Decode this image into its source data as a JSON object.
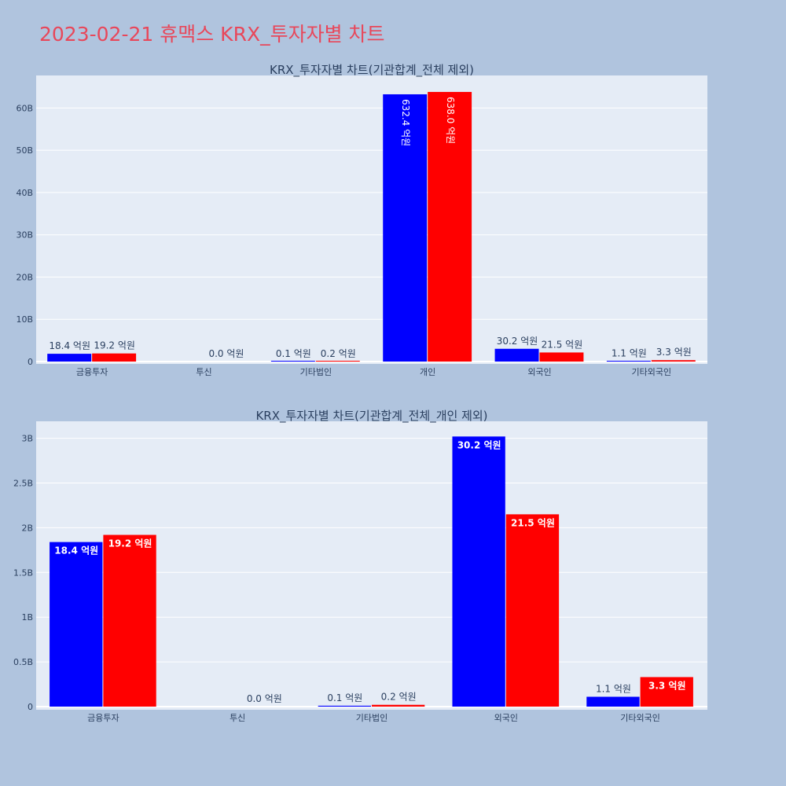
{
  "title": "2023-02-21 휴맥스 KRX_투자자별 차트",
  "colors": {
    "page_bg": "#b0c4de",
    "plot_bg": "#e5ecf6",
    "title": "#e8475a",
    "series1": "#0000ff",
    "series2": "#ff0000"
  },
  "chart_data": [
    {
      "type": "bar",
      "title": "KRX_투자자별 차트(기관합계_전체 제외)",
      "categories": [
        "금융투자",
        "투신",
        "기타법인",
        "개인",
        "외국인",
        "기타외국인"
      ],
      "series": [
        {
          "values": [
            1.84,
            0.0,
            0.01,
            63.24,
            3.02,
            0.11
          ],
          "labels": [
            "18.4 억원",
            "",
            "0.1 억원",
            "632.4 억원",
            "30.2 억원",
            "1.1 억원"
          ]
        },
        {
          "values": [
            1.92,
            0.0,
            0.02,
            63.8,
            2.15,
            0.33
          ],
          "labels": [
            "19.2 억원",
            "0.0 억원",
            "0.2 억원",
            "638.0 억원",
            "21.5 억원",
            "3.3 억원"
          ]
        }
      ],
      "yticks": [
        "0",
        "10B",
        "20B",
        "30B",
        "40B",
        "50B",
        "60B"
      ],
      "ylim": [
        0,
        67.7
      ]
    },
    {
      "type": "bar",
      "title": "KRX_투자자별 차트(기관합계_전체_개인 제외)",
      "categories": [
        "금융투자",
        "투신",
        "기타법인",
        "외국인",
        "기타외국인"
      ],
      "series": [
        {
          "values": [
            1.84,
            0.0,
            0.01,
            3.02,
            0.11
          ],
          "labels": [
            "18.4 억원",
            "",
            "0.1 억원",
            "30.2 억원",
            "1.1 억원"
          ]
        },
        {
          "values": [
            1.92,
            0.0,
            0.02,
            2.15,
            0.33
          ],
          "labels": [
            "19.2 억원",
            "0.0 억원",
            "0.2 억원",
            "21.5 억원",
            "3.3 억원"
          ]
        }
      ],
      "yticks": [
        "0",
        "0.5B",
        "1B",
        "1.5B",
        "2B",
        "2.5B",
        "3B"
      ],
      "ylim": [
        0,
        3.19
      ]
    }
  ]
}
